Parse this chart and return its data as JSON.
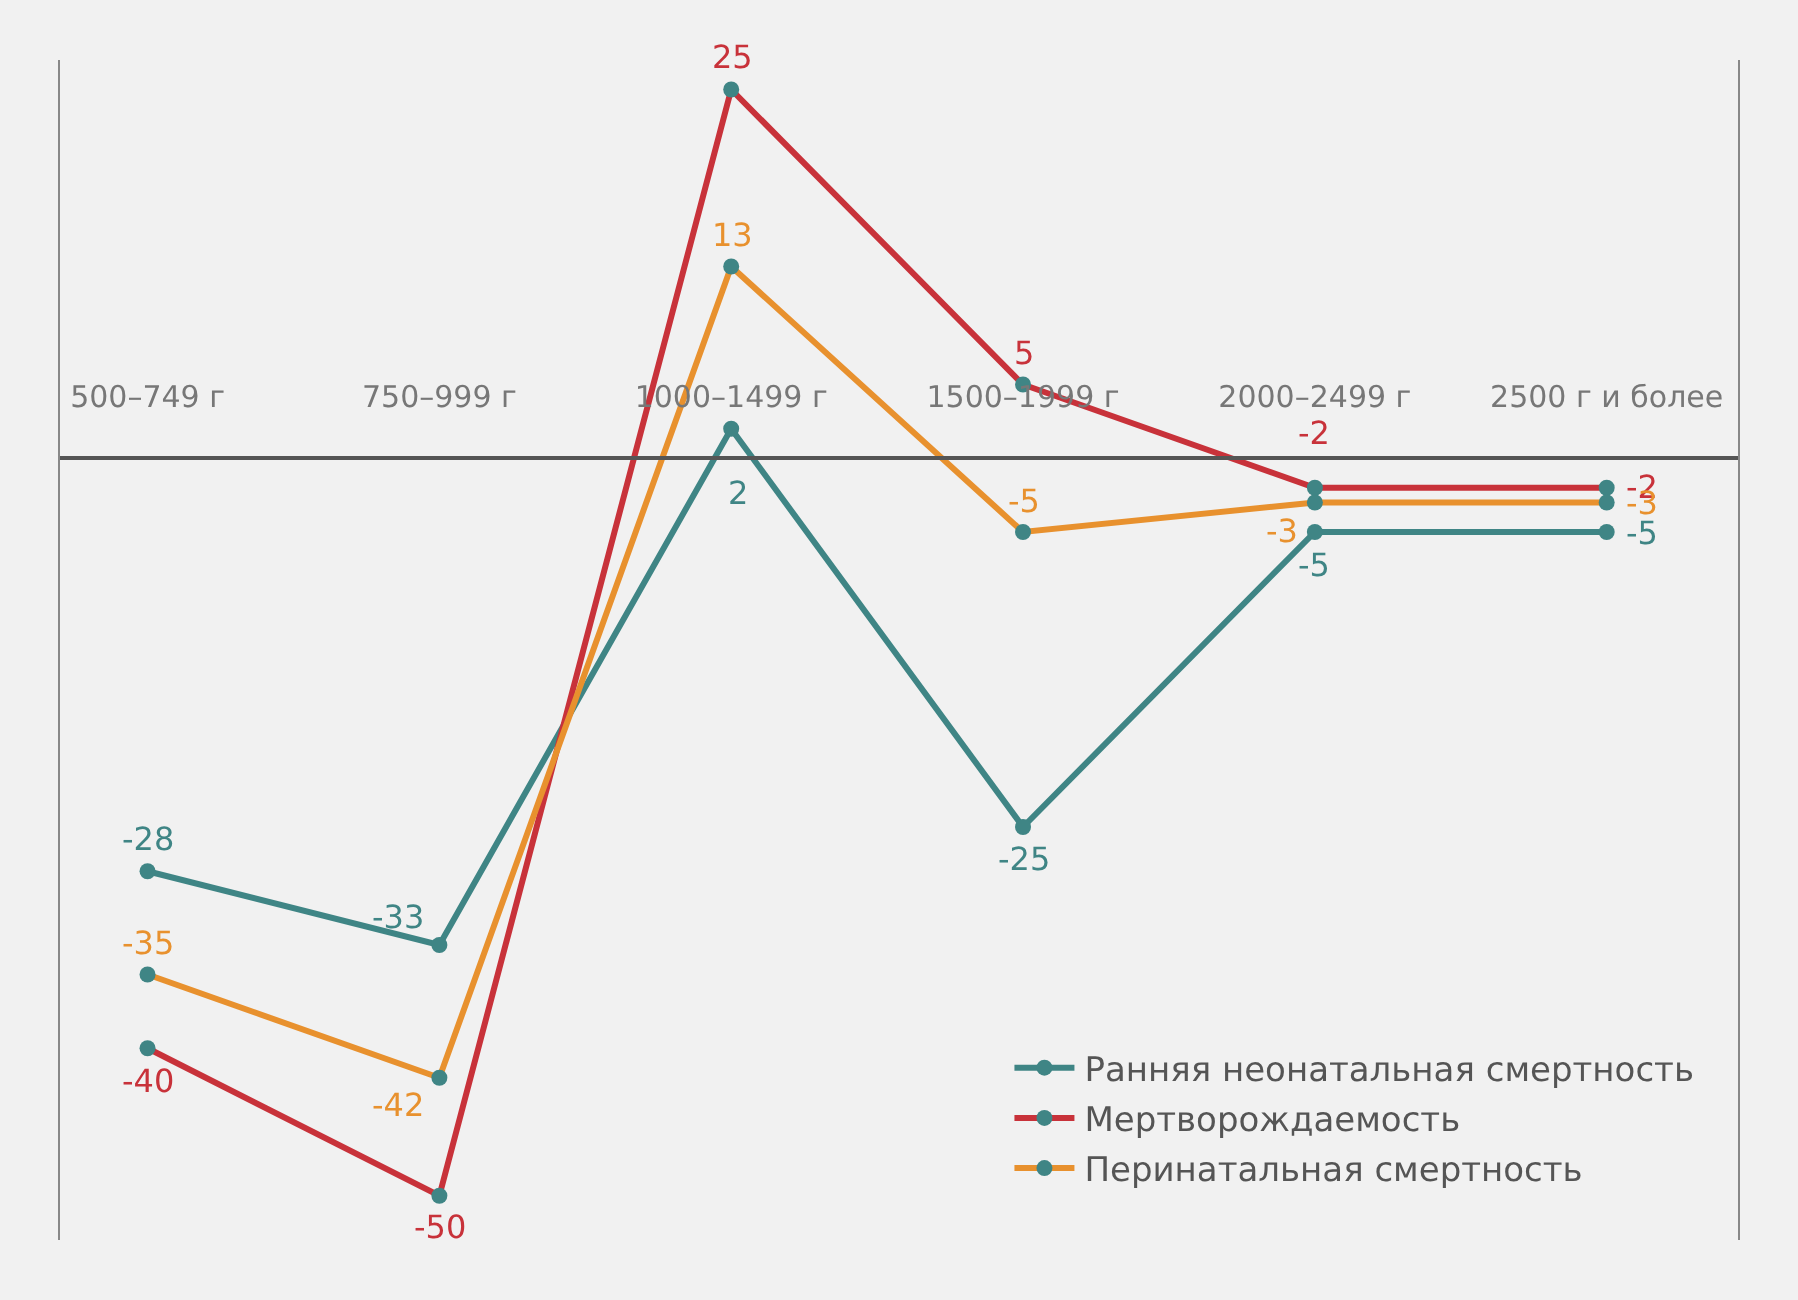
{
  "chart_data": {
    "type": "line",
    "categories": [
      "500–749 г",
      "750–999 г",
      "1000–1499 г",
      "1500–1999 г",
      "2000–2499 г",
      "2500 г и более"
    ],
    "series": [
      {
        "name": "Ранняя неонатальная смертность",
        "color": "#3f8585",
        "values": [
          -28,
          -33,
          2,
          -25,
          -5,
          -5
        ]
      },
      {
        "name": "Мертворождаемость",
        "color": "#c8323a",
        "values": [
          -40,
          -50,
          25,
          5,
          -2,
          -2
        ]
      },
      {
        "name": "Перинатальная смертность",
        "color": "#e8912e",
        "values": [
          -35,
          -42,
          13,
          -5,
          -3,
          -3
        ]
      }
    ],
    "ylim": [
      -53,
      27
    ],
    "data_labels": true,
    "marker": "circle",
    "line_style": "solid",
    "legend": "bottom right",
    "tick_labels": "x",
    "grid": false
  }
}
